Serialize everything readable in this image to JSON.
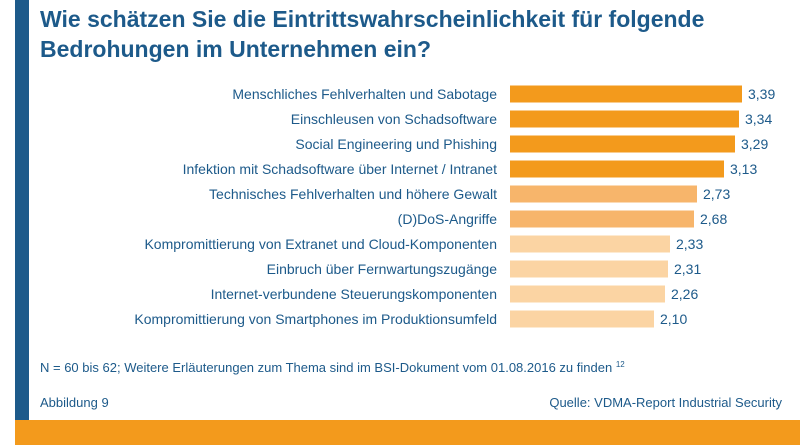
{
  "title_lines": [
    "Wie schätzen Sie die Eintrittswahrscheinlichkeit für folgende",
    "Bedrohungen im Unternehmen ein?"
  ],
  "chart_data": {
    "type": "bar",
    "orientation": "horizontal",
    "title": "Wie schätzen Sie die Eintrittswahrscheinlichkeit für folgende Bedrohungen im Unternehmen ein?",
    "categories": [
      "Menschliches Fehlverhalten und Sabotage",
      "Einschleusen von Schadsoftware",
      "Social Engineering und Phishing",
      "Infektion mit Schadsoftware über Internet / Intranet",
      "Technisches Fehlverhalten und höhere Gewalt",
      "(D)DoS-Angriffe",
      "Kompromittierung von Extranet und Cloud-Komponenten",
      "Einbruch über Fernwartungszugänge",
      "Internet-verbundene Steuerungskomponenten",
      "Kompromittierung von Smartphones im Produktionsumfeld"
    ],
    "values": [
      3.39,
      3.34,
      3.29,
      3.13,
      2.73,
      2.68,
      2.33,
      2.31,
      2.26,
      2.1
    ],
    "value_labels": [
      "3,39",
      "3,34",
      "3,29",
      "3,13",
      "2,73",
      "2,68",
      "2,33",
      "2,31",
      "2,26",
      "2,10"
    ],
    "bar_colors": [
      "#f39a1c",
      "#f39a1c",
      "#f39a1c",
      "#f39a1c",
      "#f7b56b",
      "#f7b56b",
      "#fbd4a3",
      "#fbd4a3",
      "#fbd4a3",
      "#fbd4a3"
    ],
    "xlim": [
      0,
      4
    ],
    "grid": false
  },
  "footnote": {
    "text": "N = 60 bis 62; Weitere Erläuterungen zum Thema sind im BSI-Dokument vom 01.08.2016 zu finden",
    "ref": "12"
  },
  "figure_label": "Abbildung 9",
  "source": "Quelle: VDMA-Report Industrial Security",
  "colors": {
    "brand_blue": "#1d5a8a",
    "accent_orange": "#f39a1c"
  }
}
